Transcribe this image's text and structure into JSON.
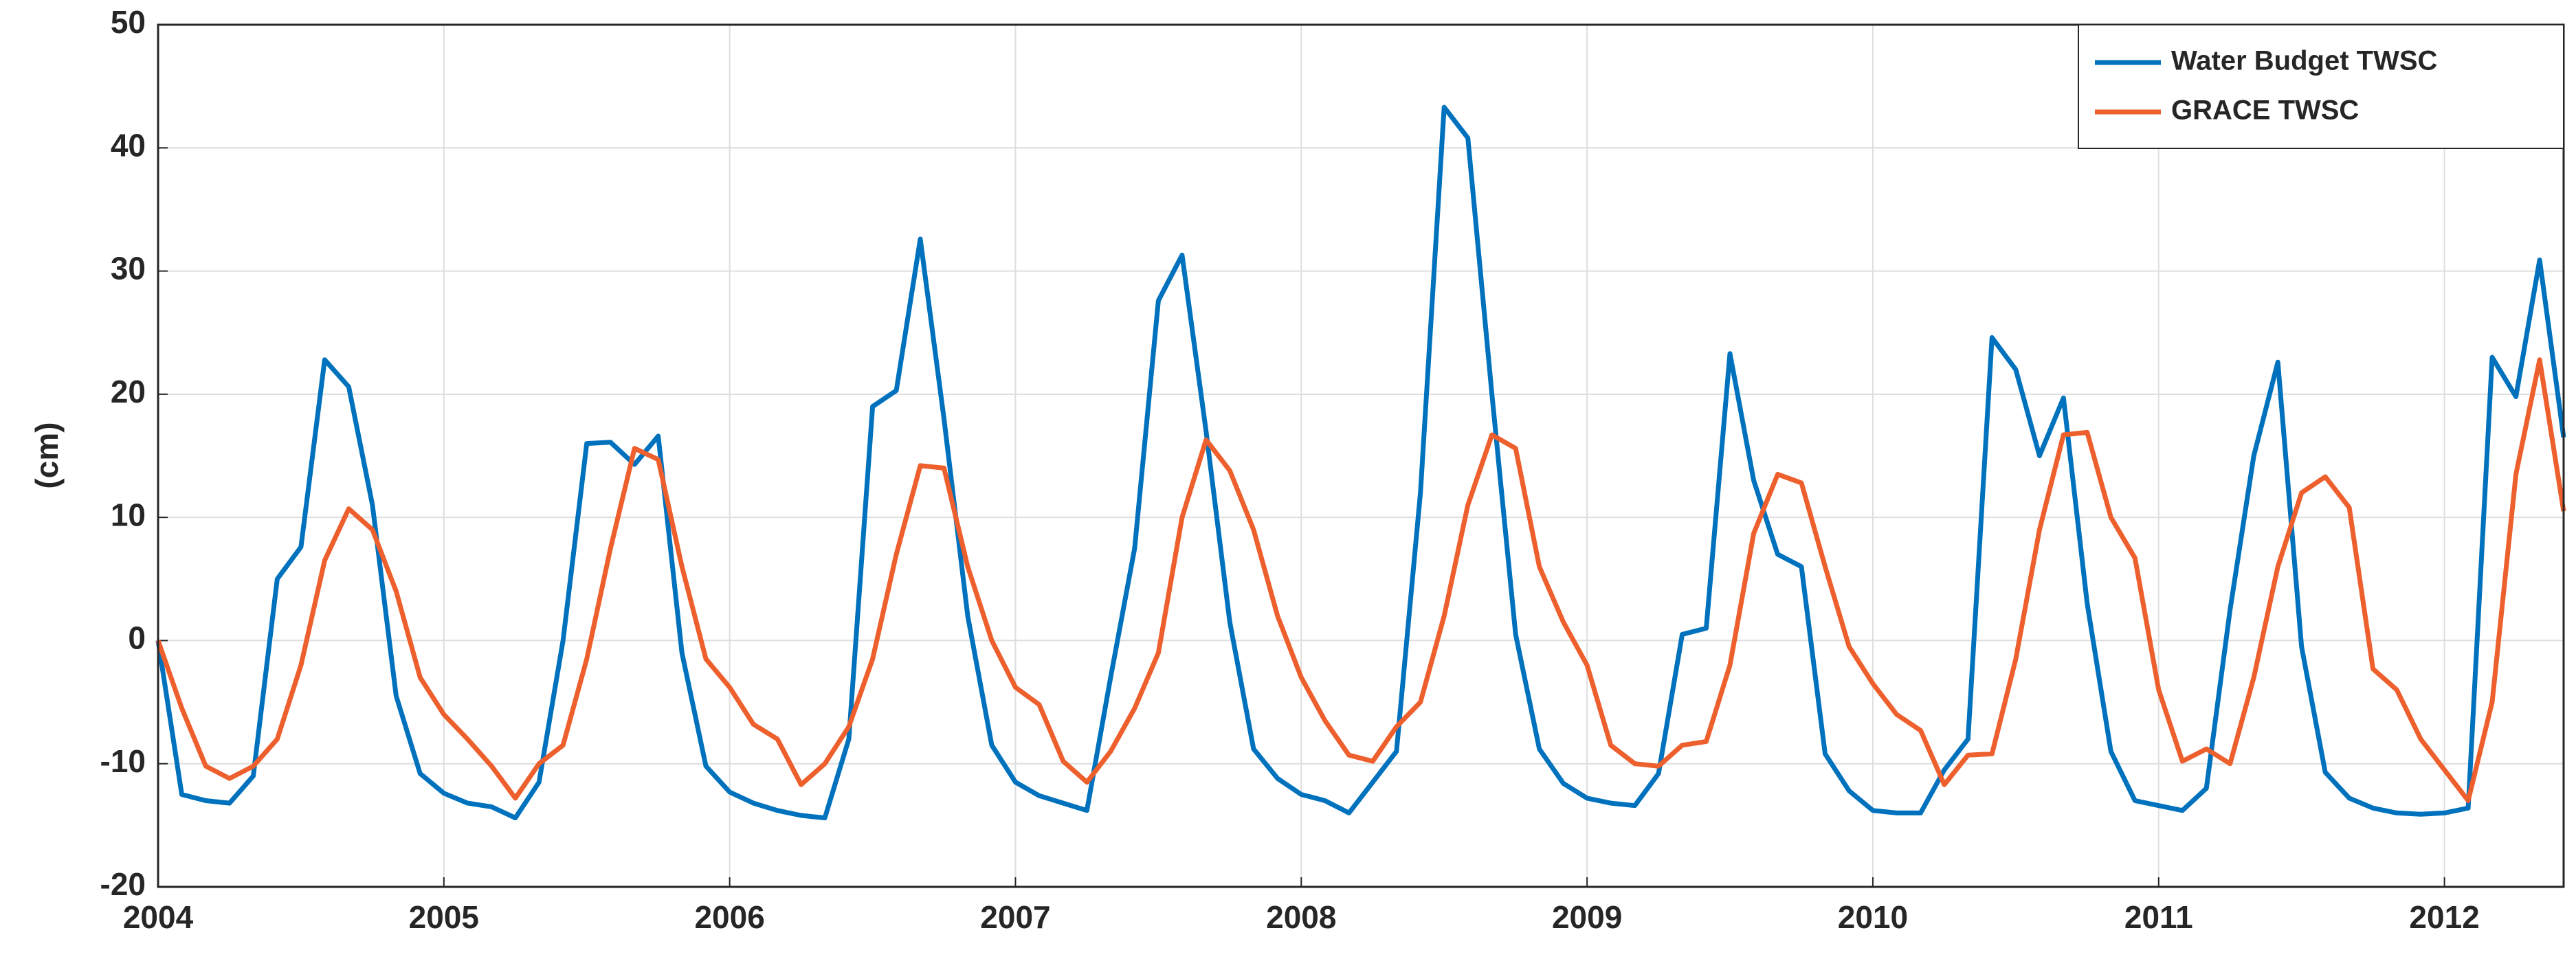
{
  "chart_data": {
    "type": "line",
    "y_label": "(cm)",
    "x": [
      2004,
      2004.083,
      2004.167,
      2004.25,
      2004.333,
      2004.417,
      2004.5,
      2004.583,
      2004.667,
      2004.75,
      2004.833,
      2004.917,
      2005,
      2005.083,
      2005.167,
      2005.25,
      2005.333,
      2005.417,
      2005.5,
      2005.583,
      2005.667,
      2005.75,
      2005.833,
      2005.917,
      2006,
      2006.083,
      2006.167,
      2006.25,
      2006.333,
      2006.417,
      2006.5,
      2006.583,
      2006.667,
      2006.75,
      2006.833,
      2006.917,
      2007,
      2007.083,
      2007.167,
      2007.25,
      2007.333,
      2007.417,
      2007.5,
      2007.583,
      2007.667,
      2007.75,
      2007.833,
      2007.917,
      2008,
      2008.083,
      2008.167,
      2008.25,
      2008.333,
      2008.417,
      2008.5,
      2008.583,
      2008.667,
      2008.75,
      2008.833,
      2008.917,
      2009,
      2009.083,
      2009.167,
      2009.25,
      2009.333,
      2009.417,
      2009.5,
      2009.583,
      2009.667,
      2009.75,
      2009.833,
      2009.917,
      2010,
      2010.083,
      2010.167,
      2010.25,
      2010.333,
      2010.417,
      2010.5,
      2010.583,
      2010.667,
      2010.75,
      2010.833,
      2010.917,
      2011,
      2011.083,
      2011.167,
      2011.25,
      2011.333,
      2011.417,
      2011.5,
      2011.583,
      2011.667,
      2011.75,
      2011.833,
      2011.917,
      2012,
      2012.083,
      2012.167,
      2012.25,
      2012.333,
      2012.417
    ],
    "series": [
      {
        "name": "Water Budget TWSC",
        "color": "#0072bd",
        "values": [
          0,
          -12.5,
          -13.0,
          -13.2,
          -11.0,
          5.0,
          7.6,
          22.8,
          20.6,
          11.0,
          -4.5,
          -10.8,
          -12.4,
          -13.2,
          -13.5,
          -14.4,
          -11.5,
          0.0,
          16.0,
          16.1,
          14.3,
          16.6,
          -1.0,
          -10.2,
          -12.3,
          -13.2,
          -13.8,
          -14.2,
          -14.4,
          -8.0,
          19.0,
          20.3,
          32.6,
          18.0,
          2.0,
          -8.5,
          -11.5,
          -12.6,
          -13.2,
          -13.8,
          -3.0,
          7.5,
          27.6,
          31.3,
          17.0,
          1.5,
          -8.8,
          -11.2,
          -12.5,
          -13.0,
          -14.0,
          -11.5,
          -9.0,
          12.0,
          43.3,
          40.8,
          20.0,
          0.5,
          -8.8,
          -11.6,
          -12.8,
          -13.2,
          -13.4,
          -10.8,
          0.5,
          1.0,
          23.3,
          13.0,
          7.0,
          6.0,
          -9.2,
          -12.2,
          -13.8,
          -14.0,
          -14.0,
          -10.5,
          -8.0,
          24.6,
          22.0,
          15.0,
          19.7,
          3.0,
          -9.0,
          -13.0,
          -13.4,
          -13.8,
          -12.0,
          2.5,
          15.0,
          22.6,
          -0.5,
          -10.7,
          -12.8,
          -13.6,
          -14.0,
          -14.1,
          -14.0,
          -13.6,
          23.0,
          19.8,
          30.9,
          16.5
        ]
      },
      {
        "name": "GRACE TWSC",
        "color": "#ed5f2c",
        "values": [
          0,
          -5.5,
          -10.2,
          -11.2,
          -10.2,
          -8.0,
          -2.0,
          6.5,
          10.7,
          9.0,
          4.0,
          -3.0,
          -6.0,
          -8.0,
          -10.2,
          -12.8,
          -10.0,
          -8.5,
          -1.5,
          7.5,
          15.6,
          14.7,
          6.0,
          -1.5,
          -3.8,
          -6.8,
          -8.0,
          -11.7,
          -10.0,
          -7.0,
          -1.5,
          7.0,
          14.2,
          14.0,
          6.0,
          0.0,
          -3.8,
          -5.2,
          -9.8,
          -11.5,
          -9.0,
          -5.5,
          -1.0,
          10.0,
          16.3,
          13.8,
          9.0,
          2.0,
          -3.0,
          -6.5,
          -9.3,
          -9.8,
          -7.0,
          -5.0,
          2.0,
          11.0,
          16.7,
          15.6,
          6.0,
          1.5,
          -2.0,
          -8.5,
          -10.0,
          -10.2,
          -8.5,
          -8.2,
          -2.0,
          8.7,
          13.5,
          12.8,
          6.0,
          -0.5,
          -3.5,
          -6.0,
          -7.3,
          -11.7,
          -9.3,
          -9.2,
          -1.5,
          9.0,
          16.7,
          16.9,
          10.0,
          6.7,
          -4.0,
          -9.8,
          -8.8,
          -10.0,
          -3.0,
          6.0,
          12.0,
          13.3,
          10.8,
          -2.3,
          -4.0,
          -8.0,
          -10.5,
          -13.0,
          -5.0,
          13.5,
          22.8,
          10.5
        ]
      }
    ],
    "xlim": [
      2004,
      2012.417
    ],
    "xticks": [
      2004,
      2005,
      2006,
      2007,
      2008,
      2009,
      2010,
      2011,
      2012
    ],
    "ylim": [
      -20,
      50
    ],
    "yticks": [
      -20,
      -10,
      0,
      10,
      20,
      30,
      40,
      50
    ],
    "grid": true,
    "legend": "upper-right"
  }
}
